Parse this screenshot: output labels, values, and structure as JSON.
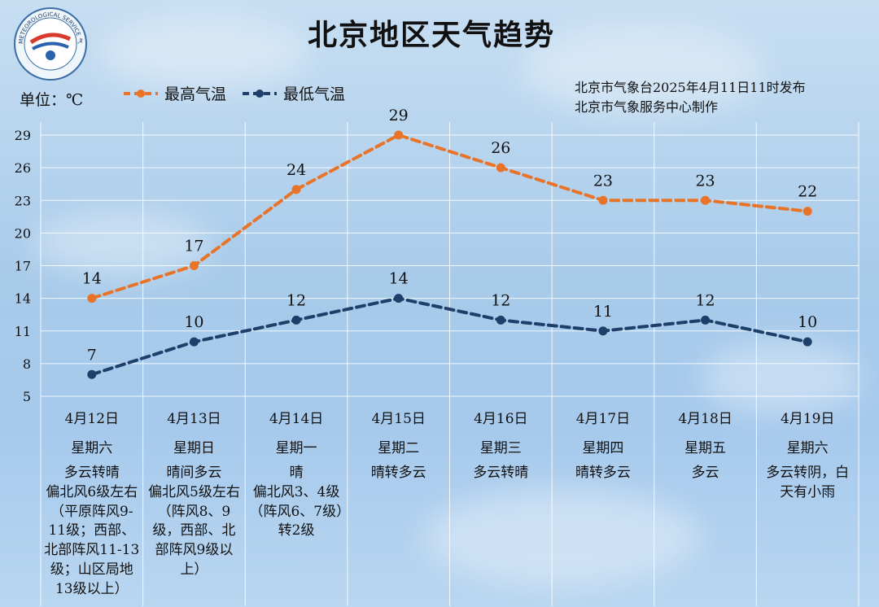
{
  "title": "北京地区天气趋势",
  "unit_label": "单位：℃",
  "issuer_line1": "北京市气象台2025年4月11日11时发布",
  "issuer_line2": "北京市气象服务中心制作",
  "logo_text": "METEOROLOGICAL SERVICE 气象服务",
  "colors": {
    "high": "#e8742a",
    "low": "#1f3f6b",
    "grid": "#ffffff"
  },
  "chart_data": {
    "type": "line",
    "categories": [
      "4月12日",
      "4月13日",
      "4月14日",
      "4月15日",
      "4月16日",
      "4月17日",
      "4月18日",
      "4月19日"
    ],
    "ylim": [
      5,
      29
    ],
    "yticks": [
      "5",
      "8",
      "11",
      "14",
      "17",
      "20",
      "23",
      "26",
      "29"
    ],
    "legend_position": "top-left",
    "grid": true,
    "series": [
      {
        "name": "最高气温",
        "color": "#e8742a",
        "values": [
          14,
          17,
          24,
          29,
          26,
          23,
          23,
          22
        ]
      },
      {
        "name": "最低气温",
        "color": "#1f3f6b",
        "values": [
          7,
          10,
          12,
          14,
          12,
          11,
          12,
          10
        ]
      }
    ]
  },
  "days": [
    {
      "date": "4月12日",
      "weekday": "星期六",
      "weather": "多云转晴",
      "wind": "偏北风6级左右（平原阵风9-11级；西部、北部阵风11-13级；山区局地13级以上）"
    },
    {
      "date": "4月13日",
      "weekday": "星期日",
      "weather": "晴间多云",
      "wind": "偏北风5级左右（阵风8、9级，西部、北部阵风9级以上）"
    },
    {
      "date": "4月14日",
      "weekday": "星期一",
      "weather": "晴",
      "wind": "偏北风3、4级（阵风6、7级）转2级"
    },
    {
      "date": "4月15日",
      "weekday": "星期二",
      "weather": "晴转多云",
      "wind": ""
    },
    {
      "date": "4月16日",
      "weekday": "星期三",
      "weather": "多云转晴",
      "wind": ""
    },
    {
      "date": "4月17日",
      "weekday": "星期四",
      "weather": "晴转多云",
      "wind": ""
    },
    {
      "date": "4月18日",
      "weekday": "星期五",
      "weather": "多云",
      "wind": ""
    },
    {
      "date": "4月19日",
      "weekday": "星期六",
      "weather": "多云转阴，白天有小雨",
      "wind": ""
    }
  ]
}
